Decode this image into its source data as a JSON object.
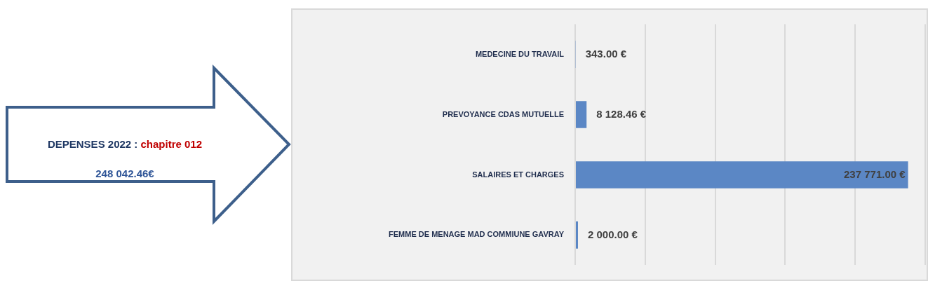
{
  "chart_data": {
    "type": "bar",
    "orientation": "horizontal",
    "categories": [
      "MEDECINE DU TRAVAIL",
      "PREVOYANCE CDAS MUTUELLE",
      "SALAIRES ET CHARGES",
      "FEMME DE MENAGE MAD COMMIUNE GAVRAY"
    ],
    "values": [
      343,
      8128.46,
      237771,
      2000
    ],
    "value_labels": [
      "343.00 €",
      "8 128.46 €",
      "237 771.00 €",
      "2 000.00 €"
    ],
    "color": "#5b87c5",
    "grid": "x",
    "tick_labels": "y",
    "legend": false,
    "annotations": [
      "DEPENSES 2022 :",
      "chapitre 012",
      "248 042.46€"
    ]
  }
}
